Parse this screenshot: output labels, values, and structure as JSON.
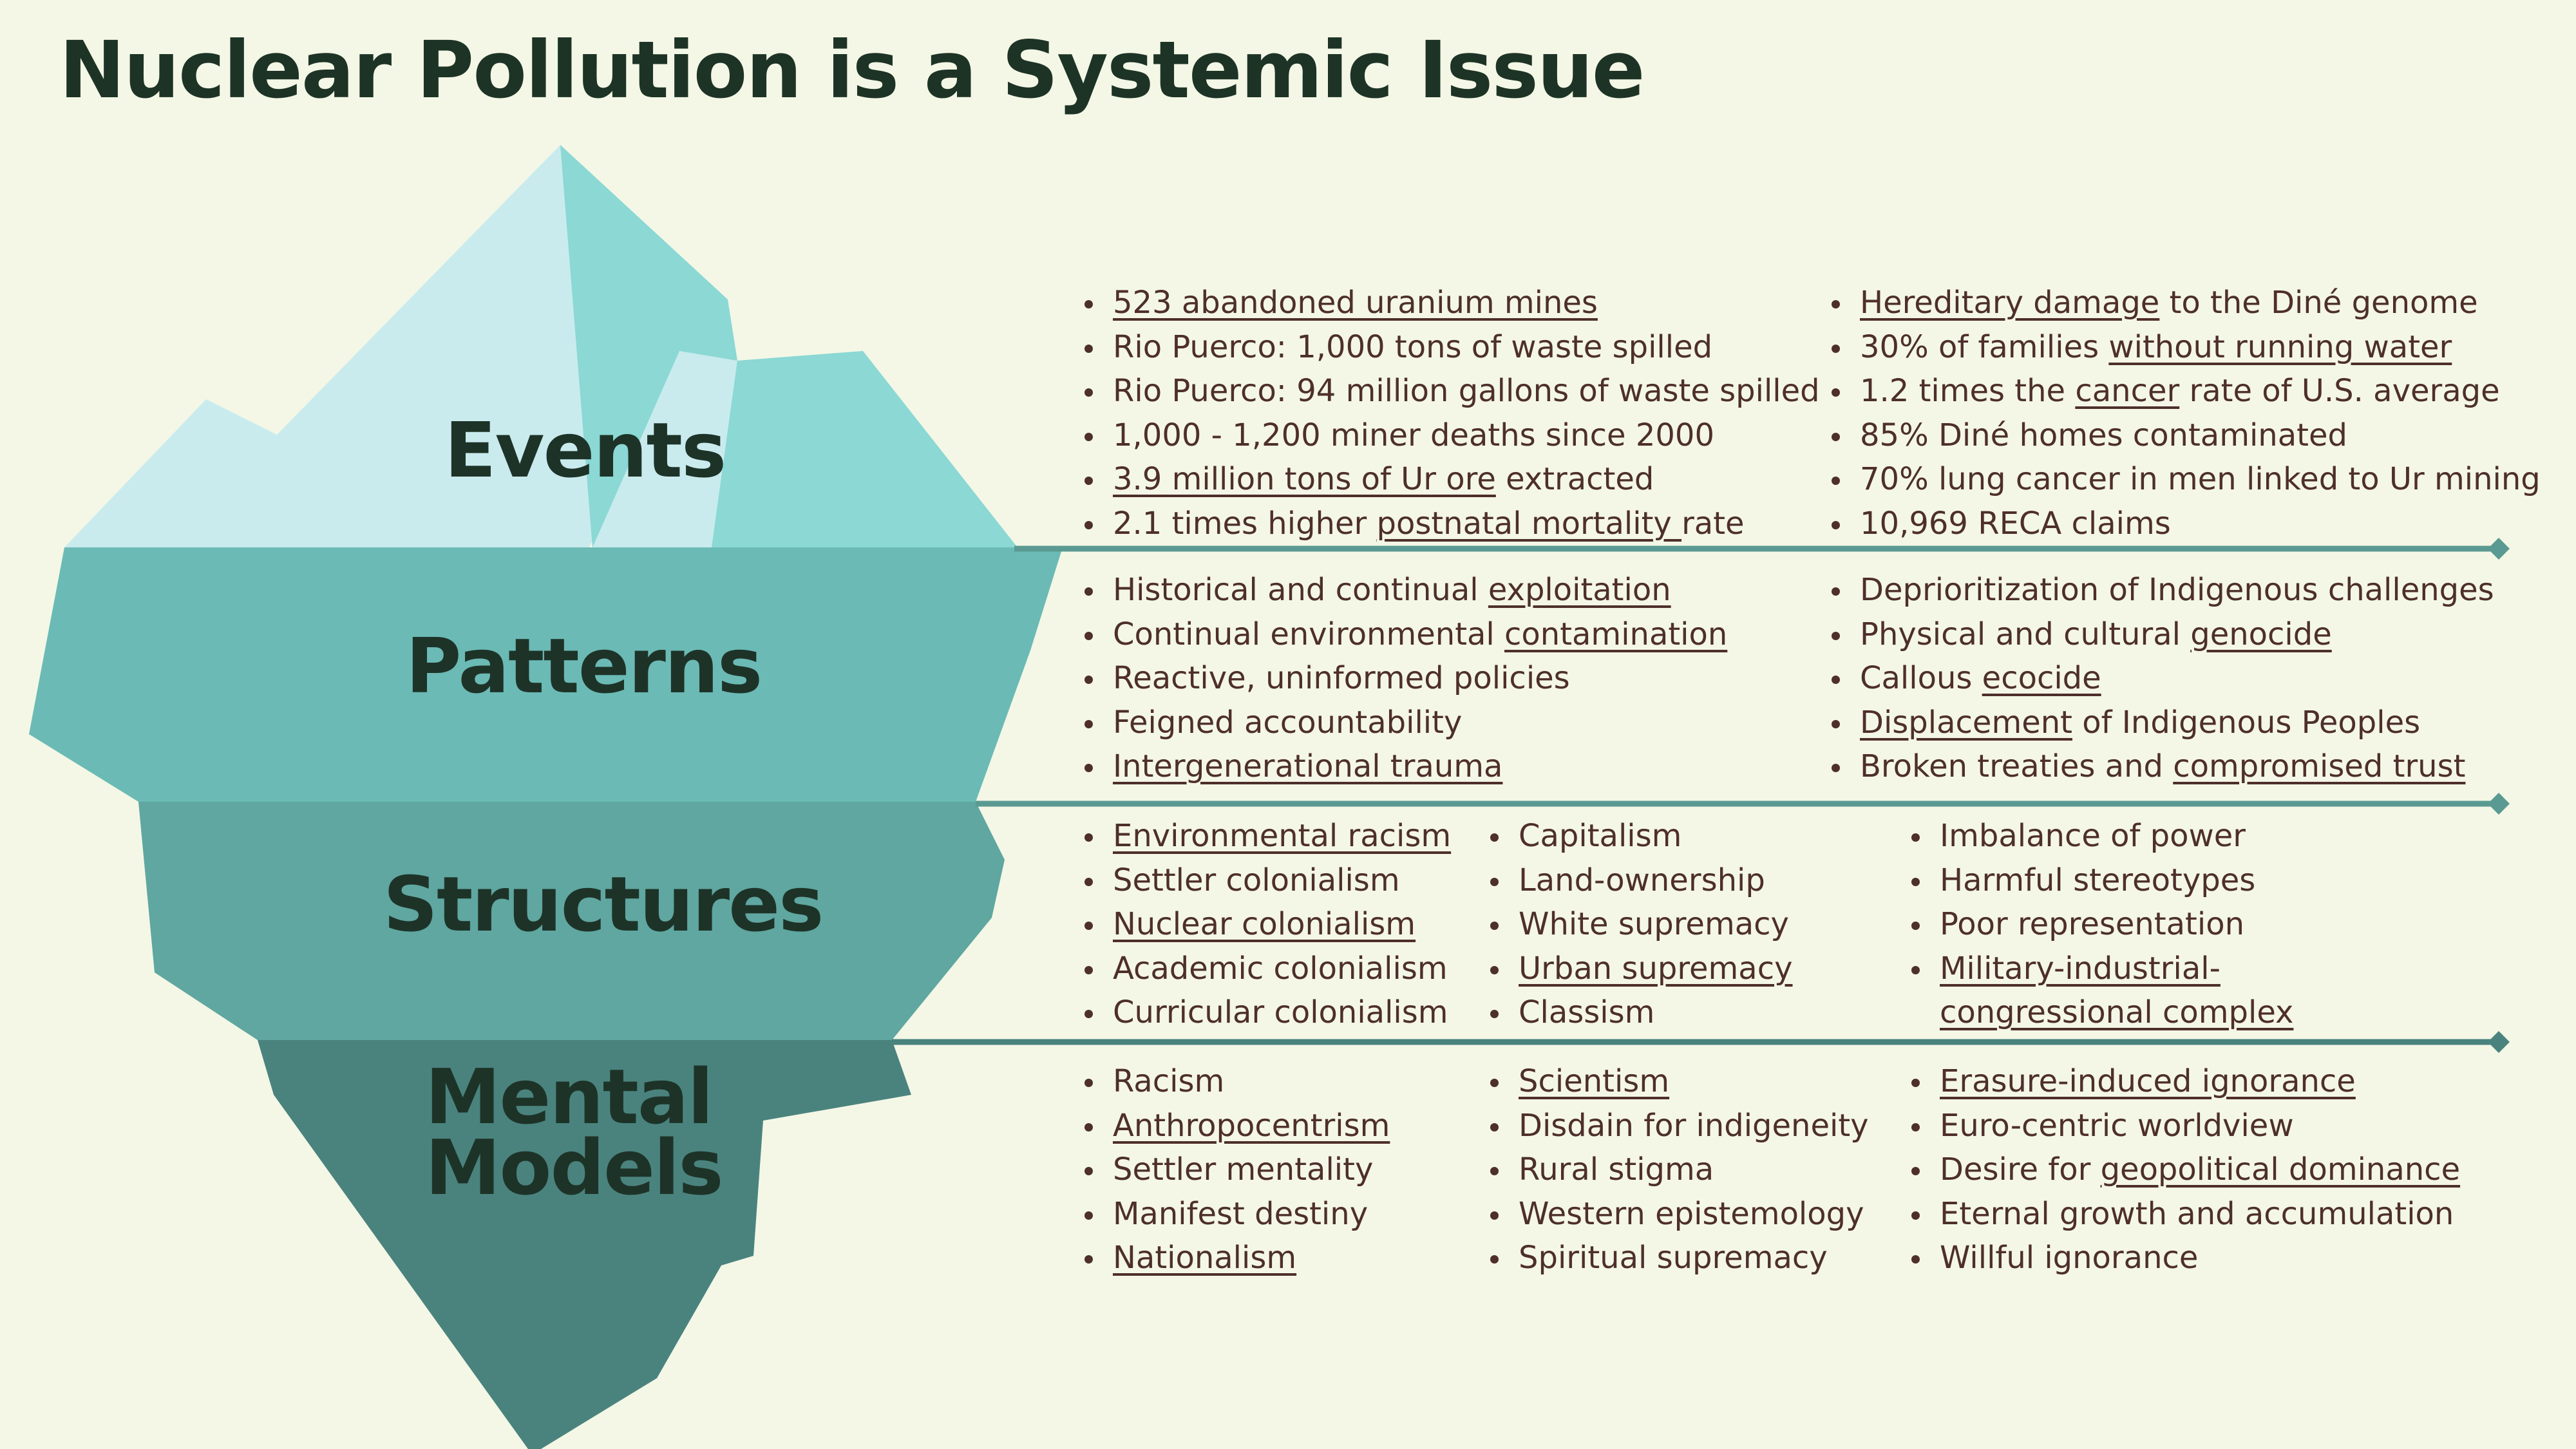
{
  "title": "Nuclear Pollution is a Systemic Issue",
  "layers": {
    "events": {
      "label": "Events",
      "columns": [
        [
          [
            {
              "t": "523 abandoned uranium mines",
              "u": true
            }
          ],
          [
            {
              "t": "Rio Puerco: 1,000 tons of waste spilled"
            }
          ],
          [
            {
              "t": "Rio Puerco: 94 million gallons of waste spilled"
            }
          ],
          [
            {
              "t": "1,000 - 1,200 miner deaths since 2000"
            }
          ],
          [
            {
              "t": "3.9 million tons of Ur ore",
              "u": true
            },
            {
              "t": " extracted"
            }
          ],
          [
            {
              "t": "2.1 times higher "
            },
            {
              "t": "postnatal mortality ",
              "u": true
            },
            {
              "t": "rate"
            }
          ]
        ],
        [
          [
            {
              "t": "Hereditary damage",
              "u": true
            },
            {
              "t": " to the Diné genome"
            }
          ],
          [
            {
              "t": "30% of families "
            },
            {
              "t": "without running water",
              "u": true
            }
          ],
          [
            {
              "t": "1.2 times the "
            },
            {
              "t": "cancer",
              "u": true
            },
            {
              "t": " rate of U.S. average"
            }
          ],
          [
            {
              "t": "85% Diné homes contaminated"
            }
          ],
          [
            {
              "t": "70% lung cancer in men linked to Ur mining"
            }
          ],
          [
            {
              "t": "10,969 RECA claims"
            }
          ]
        ]
      ]
    },
    "patterns": {
      "label": "Patterns",
      "columns": [
        [
          [
            {
              "t": "Historical and continual "
            },
            {
              "t": "exploitation",
              "u": true
            }
          ],
          [
            {
              "t": "Continual environmental "
            },
            {
              "t": "contamination",
              "u": true
            }
          ],
          [
            {
              "t": "Reactive, uninformed policies"
            }
          ],
          [
            {
              "t": "Feigned accountability"
            }
          ],
          [
            {
              "t": "Intergenerational trauma",
              "u": true
            }
          ]
        ],
        [
          [
            {
              "t": "Deprioritization of Indigenous challenges"
            }
          ],
          [
            {
              "t": "Physical and cultural "
            },
            {
              "t": "genocide",
              "u": true
            }
          ],
          [
            {
              "t": "Callous "
            },
            {
              "t": "ecocide",
              "u": true
            }
          ],
          [
            {
              "t": "Displacement",
              "u": true
            },
            {
              "t": " of Indigenous Peoples"
            }
          ],
          [
            {
              "t": "Broken treaties and "
            },
            {
              "t": "compromised trust",
              "u": true
            }
          ]
        ]
      ]
    },
    "structures": {
      "label": "Structures",
      "columns": [
        [
          [
            {
              "t": "Environmental racism",
              "u": true
            }
          ],
          [
            {
              "t": "Settler colonialism"
            }
          ],
          [
            {
              "t": "Nuclear colonialism",
              "u": true
            }
          ],
          [
            {
              "t": "Academic colonialism"
            }
          ],
          [
            {
              "t": "Curricular colonialism"
            }
          ]
        ],
        [
          [
            {
              "t": "Capitalism"
            }
          ],
          [
            {
              "t": "Land-ownership"
            }
          ],
          [
            {
              "t": "White supremacy"
            }
          ],
          [
            {
              "t": "Urban supremacy",
              "u": true
            }
          ],
          [
            {
              "t": "Classism"
            }
          ]
        ],
        [
          [
            {
              "t": "Imbalance of power"
            }
          ],
          [
            {
              "t": "Harmful stereotypes"
            }
          ],
          [
            {
              "t": "Poor representation"
            }
          ],
          [
            {
              "t": "Military-industrial-",
              "u": true
            }
          ],
          [
            {
              "t": "congressional complex",
              "u": true,
              "cont": true
            }
          ]
        ]
      ]
    },
    "mental": {
      "label_line1": "Mental",
      "label_line2": "Models",
      "columns": [
        [
          [
            {
              "t": "Racism"
            }
          ],
          [
            {
              "t": "Anthropocentrism",
              "u": true
            }
          ],
          [
            {
              "t": "Settler mentality"
            }
          ],
          [
            {
              "t": "Manifest destiny"
            }
          ],
          [
            {
              "t": "Nationalism",
              "u": true
            }
          ]
        ],
        [
          [
            {
              "t": "Scientism",
              "u": true
            }
          ],
          [
            {
              "t": "Disdain for indigeneity"
            }
          ],
          [
            {
              "t": "Rural stigma"
            }
          ],
          [
            {
              "t": "Western epistemology"
            }
          ],
          [
            {
              "t": "Spiritual supremacy"
            }
          ]
        ],
        [
          [
            {
              "t": "Erasure-induced ignorance",
              "u": true
            }
          ],
          [
            {
              "t": "Euro-centric worldview"
            }
          ],
          [
            {
              "t": "Desire for "
            },
            {
              "t": "geopolitical dominance",
              "u": true
            }
          ],
          [
            {
              "t": "Eternal growth and accumulation"
            }
          ],
          [
            {
              "t": "Willful ignorance"
            }
          ]
        ]
      ]
    }
  },
  "colors": {
    "background": "#f4f7e6",
    "tip_light": "#c9ebee",
    "tip_mid": "#8bd8d4",
    "tip_white": "#ffffff",
    "patterns": "#6bbab5",
    "structures": "#5fa7a0",
    "mental": "#4a837e",
    "divider": "#5a9a92",
    "text": "#4e2f2a",
    "heading": "#1d3325"
  }
}
